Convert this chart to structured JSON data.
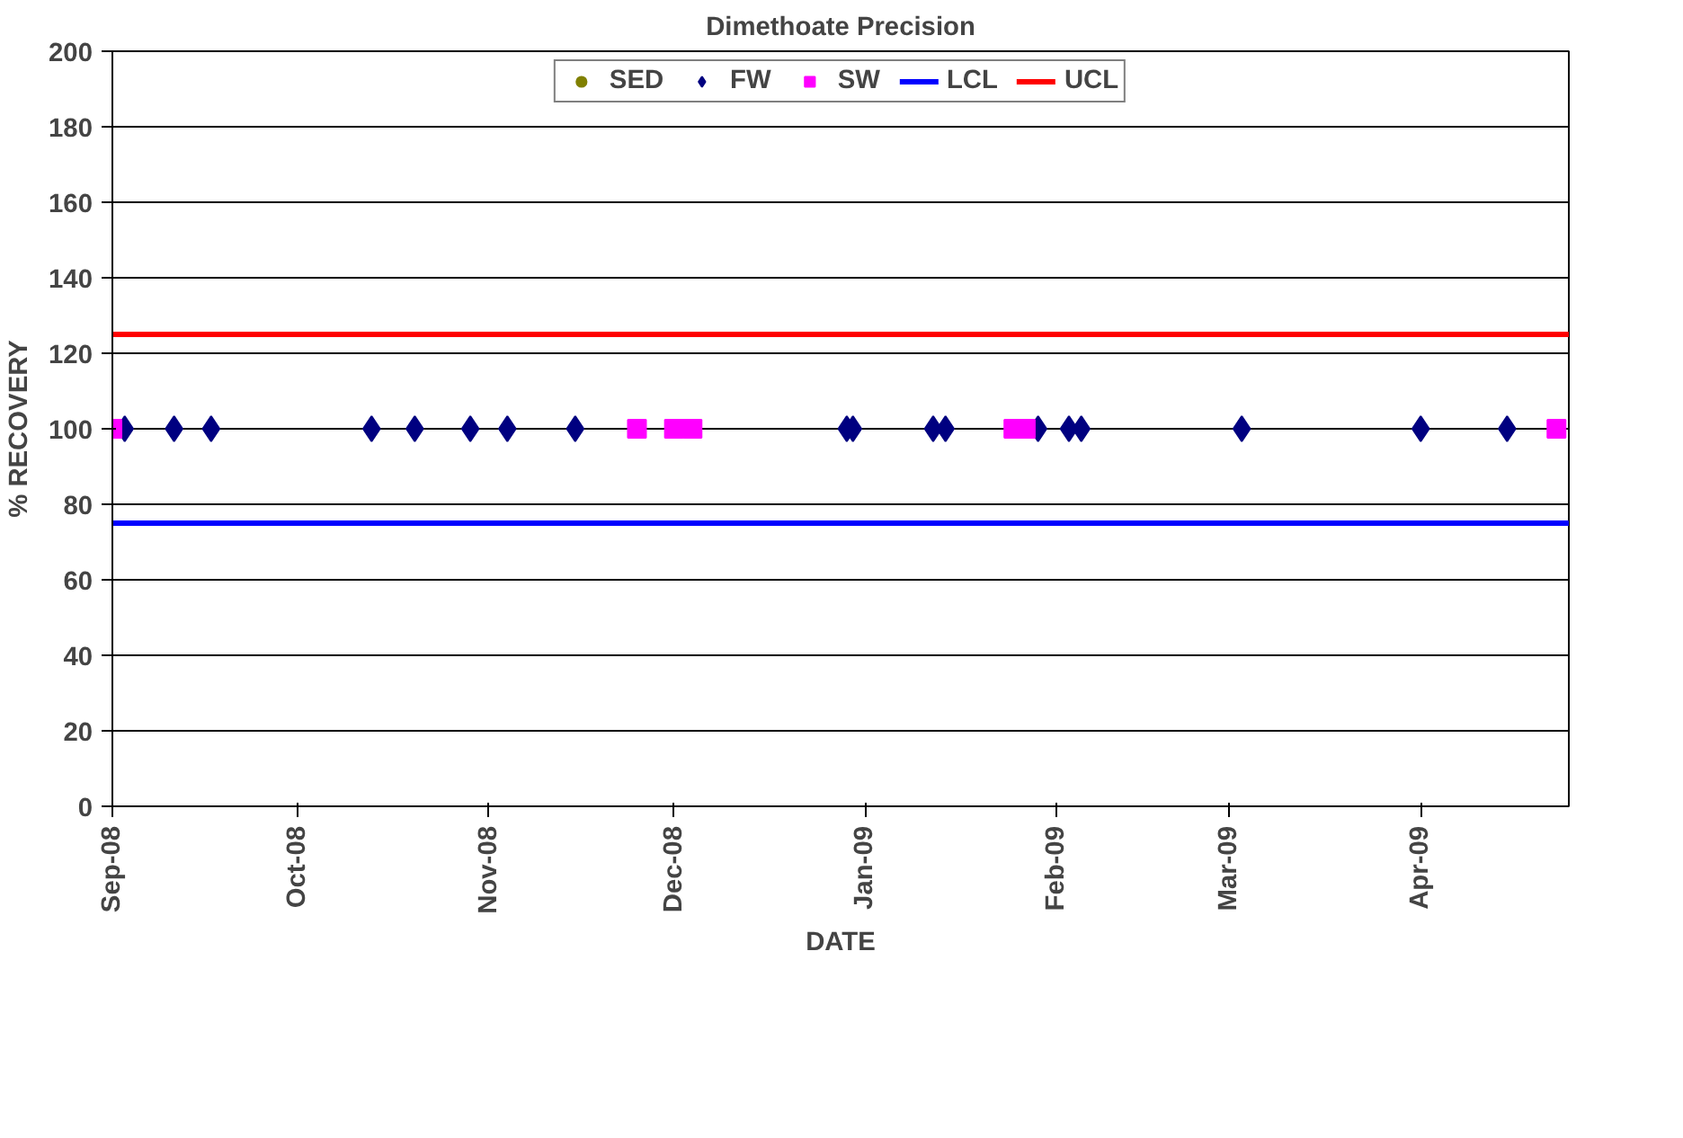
{
  "chart_data": {
    "type": "scatter",
    "title": "Dimethoate Precision",
    "xlabel": "DATE",
    "ylabel": "% RECOVERY",
    "xlim": [
      "2008-09-01",
      "2009-04-25"
    ],
    "ylim": [
      0,
      200
    ],
    "yticks": [
      0,
      20,
      40,
      60,
      80,
      100,
      120,
      140,
      160,
      180,
      200
    ],
    "xticks": [
      {
        "value": "2008-09-01",
        "label": "Sep-08"
      },
      {
        "value": "2008-10-01",
        "label": "Oct-08"
      },
      {
        "value": "2008-11-01",
        "label": "Nov-08"
      },
      {
        "value": "2008-12-01",
        "label": "Dec-08"
      },
      {
        "value": "2009-01-01",
        "label": "Jan-09"
      },
      {
        "value": "2009-02-01",
        "label": "Feb-09"
      },
      {
        "value": "2009-03-01",
        "label": "Mar-09"
      },
      {
        "value": "2009-04-01",
        "label": "Apr-09"
      }
    ],
    "grid": "y",
    "legend": "top",
    "series": [
      {
        "name": "SED",
        "color": "#808000",
        "marker": "circle"
      },
      {
        "name": "FW",
        "color": "#000080",
        "marker": "diamond",
        "x": [
          "2008-09-03",
          "2008-09-11",
          "2008-09-17",
          "2008-10-13",
          "2008-10-20",
          "2008-10-29",
          "2008-11-04",
          "2008-11-15",
          "2008-12-29",
          "2008-12-30",
          "2009-01-12",
          "2009-01-14",
          "2009-01-29",
          "2009-02-03",
          "2009-02-05",
          "2009-03-03",
          "2009-04-01",
          "2009-04-15"
        ],
        "values": [
          100,
          100,
          100,
          100,
          100,
          100,
          100,
          100,
          100,
          100,
          100,
          100,
          100,
          100,
          100,
          100,
          100,
          100
        ]
      },
      {
        "name": "SW",
        "color": "#ff00ff",
        "marker": "square",
        "x": [
          "2008-09-01",
          "2008-11-25",
          "2008-12-01",
          "2008-12-04",
          "2009-01-25",
          "2009-01-27",
          "2009-04-23"
        ],
        "values": [
          100,
          100,
          100,
          100,
          100,
          100,
          100
        ]
      },
      {
        "name": "LCL",
        "type": "line",
        "color": "#0000ff",
        "x": [
          "2008-09-01",
          "2009-04-25"
        ],
        "values": [
          75,
          75
        ]
      },
      {
        "name": "UCL",
        "type": "line",
        "color": "#ff0000",
        "x": [
          "2008-09-01",
          "2009-04-25"
        ],
        "values": [
          125,
          125
        ]
      }
    ]
  }
}
